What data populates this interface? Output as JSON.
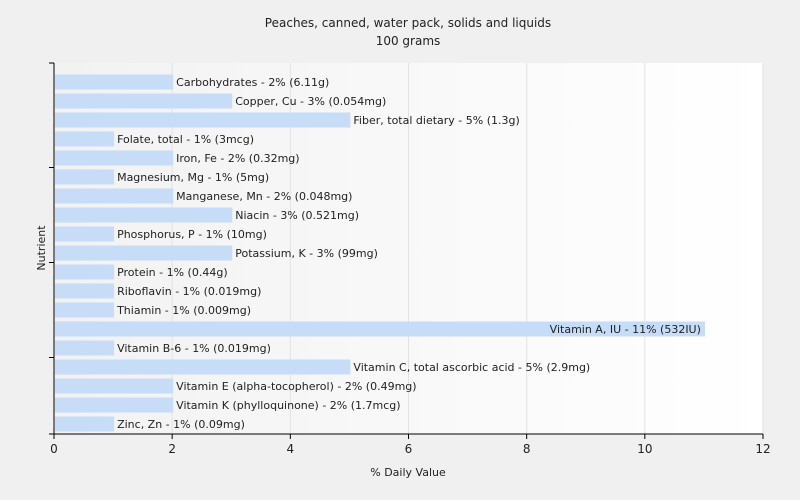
{
  "chart_data": {
    "type": "bar",
    "orientation": "horizontal",
    "title": "Peaches, canned, water pack, solids and liquids",
    "subtitle": "100 grams",
    "xlabel": "% Daily Value",
    "ylabel": "Nutrient",
    "xlim": [
      0,
      12
    ],
    "xticks": [
      0,
      2,
      4,
      6,
      8,
      10,
      12
    ],
    "grid": "vertical",
    "bar_color": "#c6dcf7",
    "categories": [
      "Carbohydrates",
      "Copper, Cu",
      "Fiber, total dietary",
      "Folate, total",
      "Iron, Fe",
      "Magnesium, Mg",
      "Manganese, Mn",
      "Niacin",
      "Phosphorus, P",
      "Potassium, K",
      "Protein",
      "Riboflavin",
      "Thiamin",
      "Vitamin A, IU",
      "Vitamin B-6",
      "Vitamin C, total ascorbic acid",
      "Vitamin E (alpha-tocopherol)",
      "Vitamin K (phylloquinone)",
      "Zinc, Zn"
    ],
    "values": [
      2,
      3,
      5,
      1,
      2,
      1,
      2,
      3,
      1,
      3,
      1,
      1,
      1,
      11,
      1,
      5,
      2,
      2,
      1
    ],
    "labels": [
      "Carbohydrates - 2% (6.11g)",
      "Copper, Cu - 3% (0.054mg)",
      "Fiber, total dietary - 5% (1.3g)",
      "Folate, total - 1% (3mcg)",
      "Iron, Fe - 2% (0.32mg)",
      "Magnesium, Mg - 1% (5mg)",
      "Manganese, Mn - 2% (0.048mg)",
      "Niacin - 3% (0.521mg)",
      "Phosphorus, P - 1% (10mg)",
      "Potassium, K - 3% (99mg)",
      "Protein - 1% (0.44g)",
      "Riboflavin - 1% (0.019mg)",
      "Thiamin - 1% (0.009mg)",
      "Vitamin A, IU - 11% (532IU)",
      "Vitamin B-6 - 1% (0.019mg)",
      "Vitamin C, total ascorbic acid - 5% (2.9mg)",
      "Vitamin E (alpha-tocopherol) - 2% (0.49mg)",
      "Vitamin K (phylloquinone) - 2% (1.7mcg)",
      "Zinc, Zn - 1% (0.09mg)"
    ]
  }
}
